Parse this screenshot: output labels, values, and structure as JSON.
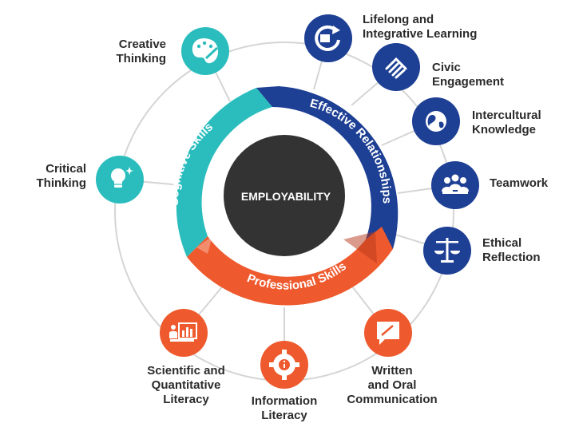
{
  "center": {
    "label": "EMPLOYABILITY"
  },
  "segments": {
    "cognitive": {
      "label": "Cognitive Skills",
      "color": "#2bbdbd"
    },
    "relationships": {
      "label": "Effective Relationships",
      "color": "#1d3f94"
    },
    "professional": {
      "label": "Professional Skills",
      "color": "#ee5a2e"
    }
  },
  "hub_color": "#333333",
  "ring_color": "#d5d5d5",
  "nodes": [
    {
      "id": "creative-thinking",
      "lines": [
        "Creative",
        "Thinking"
      ],
      "icon": "palette-icon",
      "color": "#2bbdbd"
    },
    {
      "id": "critical-thinking",
      "lines": [
        "Critical",
        "Thinking"
      ],
      "icon": "lightbulb-icon",
      "color": "#2bbdbd"
    },
    {
      "id": "lifelong-learning",
      "lines": [
        "Lifelong and",
        "Integrative Learning"
      ],
      "icon": "refresh-icon",
      "color": "#1d3f94"
    },
    {
      "id": "civic-engagement",
      "lines": [
        "Civic",
        "Engagement"
      ],
      "icon": "handshake-icon",
      "color": "#1d3f94"
    },
    {
      "id": "intercultural-knowledge",
      "lines": [
        "Intercultural",
        "Knowledge"
      ],
      "icon": "globe-icon",
      "color": "#1d3f94"
    },
    {
      "id": "teamwork",
      "lines": [
        "Teamwork"
      ],
      "icon": "people-icon",
      "color": "#1d3f94"
    },
    {
      "id": "ethical-reflection",
      "lines": [
        "Ethical",
        "Reflection"
      ],
      "icon": "scales-icon",
      "color": "#1d3f94"
    },
    {
      "id": "written-oral-communication",
      "lines": [
        "Written",
        "and Oral",
        "Communication"
      ],
      "icon": "speech-pen-icon",
      "color": "#ee5a2e"
    },
    {
      "id": "information-literacy",
      "lines": [
        "Information",
        "Literacy"
      ],
      "icon": "info-gear-icon",
      "color": "#ee5a2e"
    },
    {
      "id": "scientific-quantitative-literacy",
      "lines": [
        "Scientific and",
        "Quantitative",
        "Literacy"
      ],
      "icon": "bar-chart-icon",
      "color": "#ee5a2e"
    }
  ]
}
